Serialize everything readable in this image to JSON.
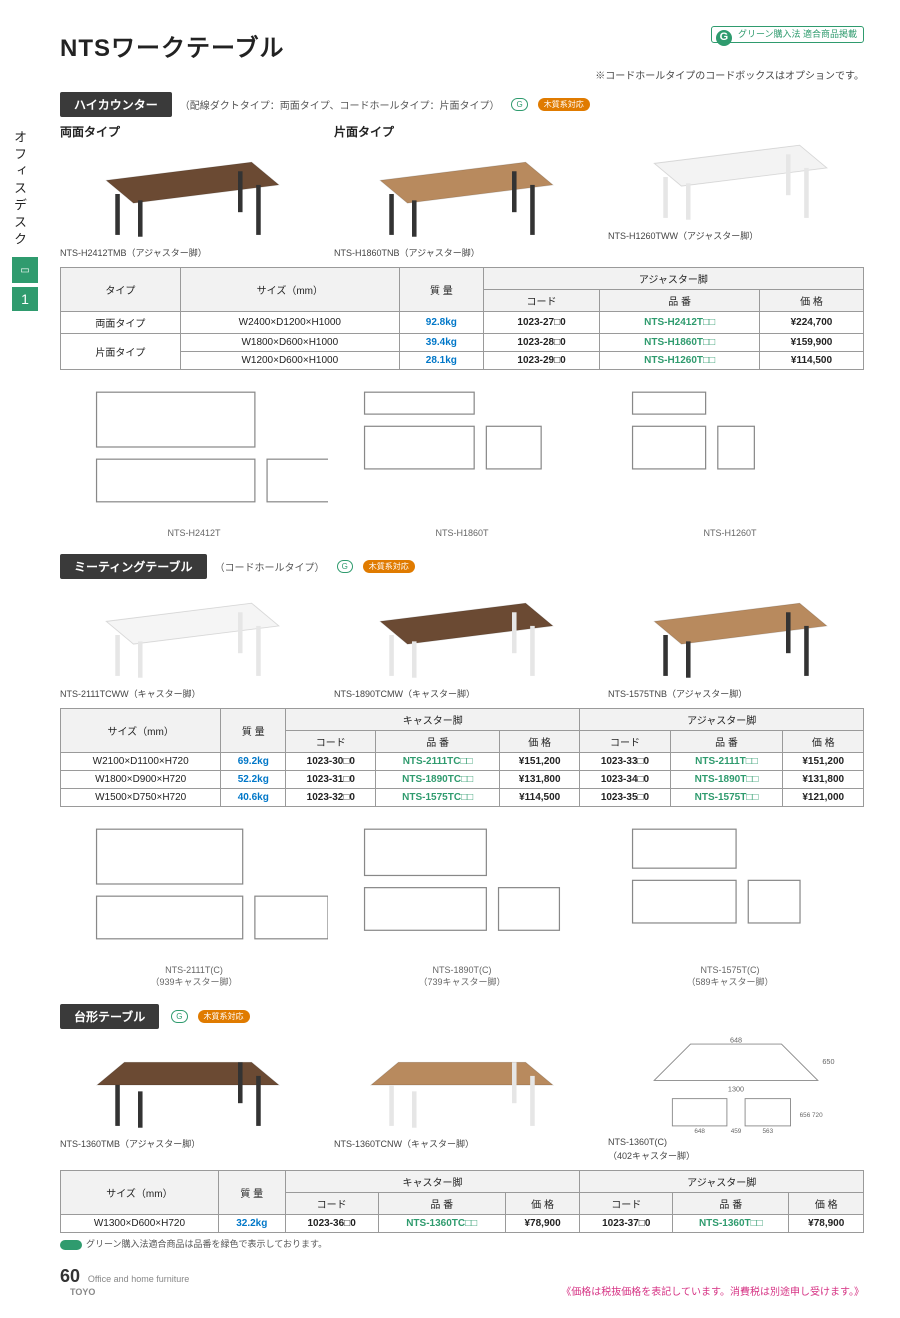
{
  "page": {
    "title": "NTSワークテーブル",
    "top_note": "※コードホールタイプのコードボックスはオプションです。",
    "green_badge": "グリーン購入法\n適合商品掲載",
    "page_number": "60",
    "brand_line1": "Office and home furniture",
    "brand_line2": "TOYO",
    "green_note": "グリーン購入法適合商品は品番を緑色で表示しております。",
    "price_note": "《価格は税抜価格を表記しています。消費税は別途申し受けます。》"
  },
  "sidebar": {
    "category": "オフィスデスク",
    "index": "1"
  },
  "colors": {
    "accent_green": "#2f9b6e",
    "mass_blue": "#0077c8",
    "tag_bg": "#3a3a3a",
    "wood_orange": "#e07b00",
    "note_pink": "#d63384",
    "border": "#9a9a9a",
    "header_bg": "#f2f2f2"
  },
  "sections": {
    "high_counter": {
      "tag": "ハイカウンター",
      "sub": "（配線ダクトタイプ：両面タイプ、コードホールタイプ：片面タイプ）",
      "eco": "木質系対応",
      "variants": [
        {
          "title": "両面タイプ",
          "caption": "NTS-H2412TMB（アジャスター脚）",
          "top": "#6b4a33",
          "leg": "#333"
        },
        {
          "title": "片面タイプ",
          "caption": "NTS-H1860TNB（アジャスター脚）",
          "top": "#b88a5e",
          "leg": "#333"
        },
        {
          "title": "",
          "caption": "NTS-H1260TWW（アジャスター脚）",
          "top": "#f3f3f3",
          "leg": "#e6e6e6"
        }
      ],
      "table": {
        "head_group": "アジャスター脚",
        "cols": [
          "タイプ",
          "サイズ（mm）",
          "質 量",
          "コード",
          "品 番",
          "価 格"
        ],
        "rows": [
          {
            "type": "両面タイプ",
            "size": "W2400×D1200×H1000",
            "mass": "92.8kg",
            "code": "1023-27□0",
            "sku": "NTS-H2412T□□",
            "price": "¥224,700"
          },
          {
            "type": "片面タイプ",
            "size": "W1800×D600×H1000",
            "mass": "39.4kg",
            "code": "1023-28□0",
            "sku": "NTS-H1860T□□",
            "price": "¥159,900"
          },
          {
            "type": "",
            "size": "W1200×D600×H1000",
            "mass": "28.1kg",
            "code": "1023-29□0",
            "sku": "NTS-H1260T□□",
            "price": "¥114,500"
          }
        ]
      },
      "dims": [
        "NTS-H2412T",
        "NTS-H1860T",
        "NTS-H1260T"
      ]
    },
    "meeting": {
      "tag": "ミーティングテーブル",
      "sub": "（コードホールタイプ）",
      "eco": "木質系対応",
      "variants": [
        {
          "caption": "NTS-2111TCWW（キャスター脚）",
          "top": "#f5f5f5",
          "leg": "#e6e6e6"
        },
        {
          "caption": "NTS-1890TCMW（キャスター脚）",
          "top": "#6b4a33",
          "leg": "#e6e6e6"
        },
        {
          "caption": "NTS-1575TNB（アジャスター脚）",
          "top": "#b88a5e",
          "leg": "#333"
        }
      ],
      "table": {
        "head_group1": "キャスター脚",
        "head_group2": "アジャスター脚",
        "cols": [
          "サイズ（mm）",
          "質 量",
          "コード",
          "品 番",
          "価 格",
          "コード",
          "品 番",
          "価 格"
        ],
        "rows": [
          {
            "size": "W2100×D1100×H720",
            "mass": "69.2kg",
            "c1": "1023-30□0",
            "s1": "NTS-2111TC□□",
            "p1": "¥151,200",
            "c2": "1023-33□0",
            "s2": "NTS-2111T□□",
            "p2": "¥151,200"
          },
          {
            "size": "W1800×D900×H720",
            "mass": "52.2kg",
            "c1": "1023-31□0",
            "s1": "NTS-1890TC□□",
            "p1": "¥131,800",
            "c2": "1023-34□0",
            "s2": "NTS-1890T□□",
            "p2": "¥131,800"
          },
          {
            "size": "W1500×D750×H720",
            "mass": "40.6kg",
            "c1": "1023-32□0",
            "s1": "NTS-1575TC□□",
            "p1": "¥114,500",
            "c2": "1023-35□0",
            "s2": "NTS-1575T□□",
            "p2": "¥121,000"
          }
        ]
      },
      "dims": [
        "NTS-2111T(C)",
        "NTS-1890T(C)",
        "NTS-1575T(C)"
      ],
      "dims_notes": [
        "（939キャスター脚）",
        "（739キャスター脚）",
        "（589キャスター脚）"
      ]
    },
    "trapezoid": {
      "tag": "台形テーブル",
      "eco": "木質系対応",
      "variants": [
        {
          "caption": "NTS-1360TMB（アジャスター脚）",
          "top": "#6b4a33",
          "leg": "#333",
          "shape": "trap"
        },
        {
          "caption": "NTS-1360TCNW（キャスター脚）",
          "top": "#b88a5e",
          "leg": "#e6e6e6",
          "shape": "trap"
        },
        {
          "caption": "NTS-1360T(C)",
          "top": "#fff",
          "leg": "#999",
          "shape": "diagram"
        }
      ],
      "dims_note": "（402キャスター脚）",
      "table": {
        "head_group1": "キャスター脚",
        "head_group2": "アジャスター脚",
        "cols": [
          "サイズ（mm）",
          "質 量",
          "コード",
          "品 番",
          "価 格",
          "コード",
          "品 番",
          "価 格"
        ],
        "rows": [
          {
            "size": "W1300×D600×H720",
            "mass": "32.2kg",
            "c1": "1023-36□0",
            "s1": "NTS-1360TC□□",
            "p1": "¥78,900",
            "c2": "1023-37□0",
            "s2": "NTS-1360T□□",
            "p2": "¥78,900"
          }
        ]
      }
    }
  }
}
